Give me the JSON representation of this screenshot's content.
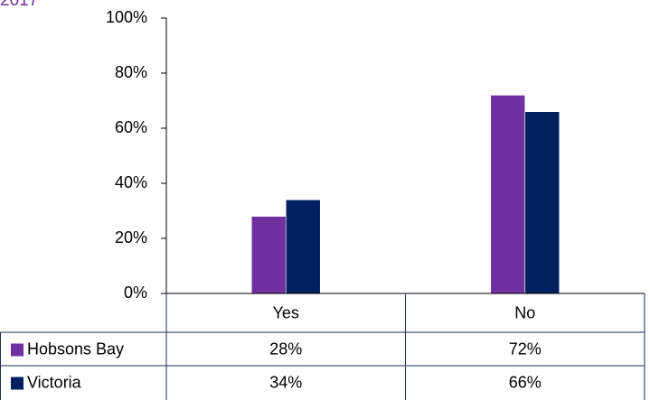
{
  "header": {
    "partial_title": "2017"
  },
  "chart_data": {
    "type": "bar",
    "categories": [
      "Yes",
      "No"
    ],
    "series": [
      {
        "name": "Hobsons Bay",
        "values": [
          28,
          72
        ],
        "labels": [
          "28%",
          "72%"
        ],
        "color": "#7030a0"
      },
      {
        "name": "Victoria",
        "values": [
          34,
          66
        ],
        "labels": [
          "34%",
          "66%"
        ],
        "color": "#002060"
      }
    ],
    "yticks": [
      "0%",
      "20%",
      "40%",
      "60%",
      "80%",
      "100%"
    ],
    "ylim": [
      0,
      100
    ],
    "xlabel": "",
    "ylabel": "",
    "grid": false,
    "legend": "data-table"
  }
}
